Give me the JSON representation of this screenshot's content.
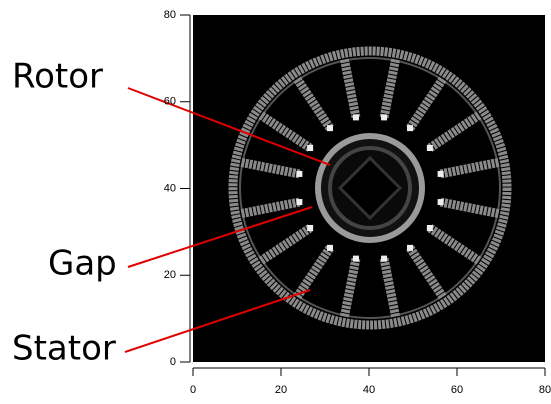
{
  "chart_data": {
    "type": "image",
    "xlim": [
      0,
      80
    ],
    "ylim": [
      0,
      80
    ],
    "xticks": [
      0,
      20,
      40,
      60,
      80
    ],
    "yticks": [
      0,
      20,
      40,
      60,
      80
    ],
    "annotations": [
      "Rotor",
      "Gap",
      "Stator"
    ]
  }
}
